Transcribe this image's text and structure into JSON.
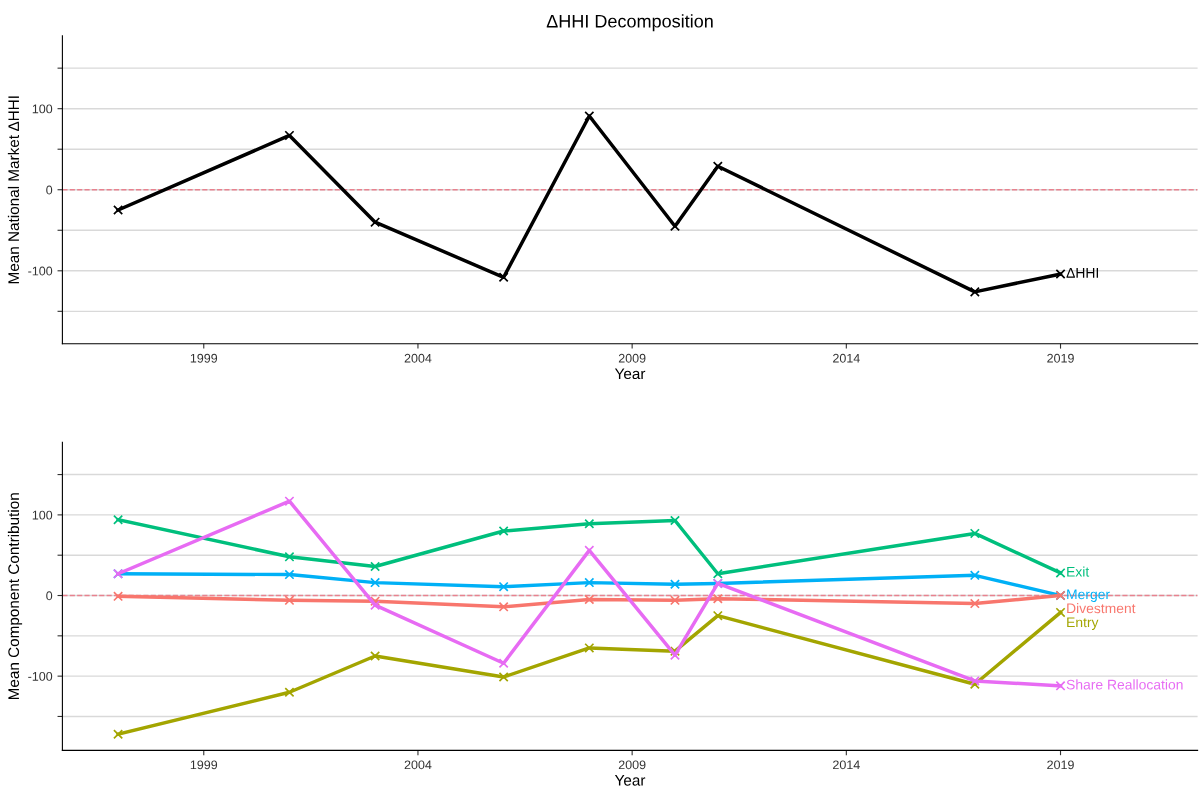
{
  "chart_data": [
    {
      "type": "line",
      "title": "ΔHHI Decomposition",
      "xlabel": "Year",
      "ylabel": "Mean National Market ΔHHI",
      "xlim": [
        1995.7,
        2022.2
      ],
      "ylim": [
        -190,
        190
      ],
      "xticks": [
        1999,
        2004,
        2009,
        2014,
        2019
      ],
      "yticks": [
        {
          "value": -150,
          "label": null
        },
        {
          "value": -100,
          "label": "-100"
        },
        {
          "value": -50,
          "label": null
        },
        0,
        {
          "value": 50,
          "label": null
        },
        100,
        {
          "value": 150,
          "label": null
        }
      ],
      "grid": "y",
      "marker": "cross",
      "line_style": "solid",
      "legend": false,
      "ref_lines": [
        {
          "axis": "y",
          "value": 0,
          "color": "#e8828f",
          "line_style": "dashed"
        }
      ],
      "series": [
        {
          "name": "ΔHHI",
          "color": "#000000",
          "x": [
            1997,
            2001,
            2003,
            2006,
            2008,
            2010,
            2011,
            2017,
            2019
          ],
          "values": [
            -25,
            67,
            -40,
            -108,
            91,
            -45,
            29,
            -126,
            -104
          ]
        }
      ]
    },
    {
      "type": "line",
      "xlabel": "Year",
      "ylabel": "Mean Component Contribution",
      "xlim": [
        1995.7,
        2022.2
      ],
      "ylim": [
        -192,
        190
      ],
      "xticks": [
        1999,
        2004,
        2009,
        2014,
        2019
      ],
      "yticks": [
        {
          "value": -150,
          "label": null
        },
        {
          "value": -100,
          "label": "-100"
        },
        {
          "value": -50,
          "label": null
        },
        0,
        {
          "value": 50,
          "label": null
        },
        100,
        {
          "value": 150,
          "label": null
        }
      ],
      "grid": "y",
      "marker": "cross",
      "line_style": "solid",
      "legend": false,
      "ref_lines": [
        {
          "axis": "y",
          "value": 0,
          "color": "#e8828f",
          "line_style": "dashed"
        }
      ],
      "series": [
        {
          "name": "Exit",
          "color": "#00bf7d",
          "x": [
            1997,
            2001,
            2003,
            2006,
            2008,
            2010,
            2011,
            2017,
            2019
          ],
          "values": [
            94,
            48,
            36,
            80,
            89,
            93,
            27,
            77,
            28
          ]
        },
        {
          "name": "Merger",
          "color": "#00b0f6",
          "x": [
            1997,
            2001,
            2003,
            2006,
            2008,
            2010,
            2011,
            2017,
            2019
          ],
          "values": [
            27,
            26,
            16,
            11,
            16,
            14,
            15,
            25,
            0
          ]
        },
        {
          "name": "Divestment",
          "color": "#f8766d",
          "x": [
            1997,
            2001,
            2003,
            2006,
            2008,
            2010,
            2011,
            2017,
            2019
          ],
          "values": [
            -1,
            -6,
            -7,
            -14,
            -5,
            -6,
            -4,
            -10,
            0
          ]
        },
        {
          "name": "Entry",
          "color": "#a3a500",
          "x": [
            1997,
            2001,
            2003,
            2006,
            2008,
            2010,
            2011,
            2017,
            2019
          ],
          "values": [
            -172,
            -120,
            -75,
            -101,
            -65,
            -69,
            -25,
            -110,
            -21
          ]
        },
        {
          "name": "Share Reallocation",
          "color": "#e76bf3",
          "x": [
            1997,
            2001,
            2003,
            2006,
            2008,
            2010,
            2011,
            2017,
            2019
          ],
          "values": [
            27,
            117,
            -12,
            -84,
            56,
            -74,
            15,
            -106,
            -112
          ]
        }
      ]
    }
  ]
}
